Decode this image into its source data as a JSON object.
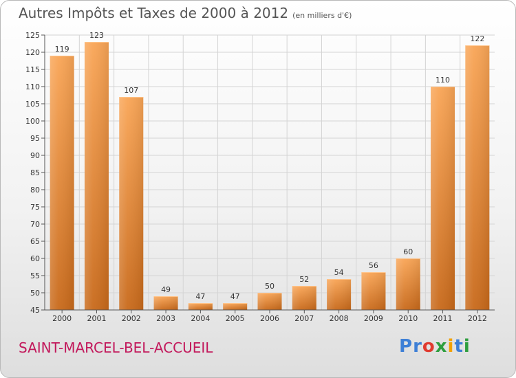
{
  "header": {
    "title": "Autres Impôts et Taxes de 2000 à 2012",
    "subtitle": "(en milliers d'€)"
  },
  "footer": {
    "commune": "SAINT-MARCEL-BEL-ACCUEIL",
    "logo_letters": [
      "P",
      "r",
      "o",
      "x",
      "i",
      "t",
      "i"
    ],
    "logo_colors": [
      "#3d7fd6",
      "#3d7fd6",
      "#e03a2f",
      "#2e9e3e",
      "#f2a200",
      "#3d7fd6",
      "#2e9e3e"
    ]
  },
  "colors": {
    "bar_top": "#f9a556",
    "bar_bottom": "#c8691a",
    "grid": "#d4d4d4",
    "axis": "#555555"
  },
  "chart_data": {
    "type": "bar",
    "categories": [
      "2000",
      "2001",
      "2002",
      "2003",
      "2004",
      "2005",
      "2006",
      "2007",
      "2008",
      "2009",
      "2010",
      "2011",
      "2012"
    ],
    "values": [
      119,
      123,
      107,
      49,
      47,
      47,
      50,
      52,
      54,
      56,
      60,
      110,
      122
    ],
    "ylim": [
      45,
      125
    ],
    "ytick_step": 5,
    "grid": true,
    "data_labels": true
  }
}
